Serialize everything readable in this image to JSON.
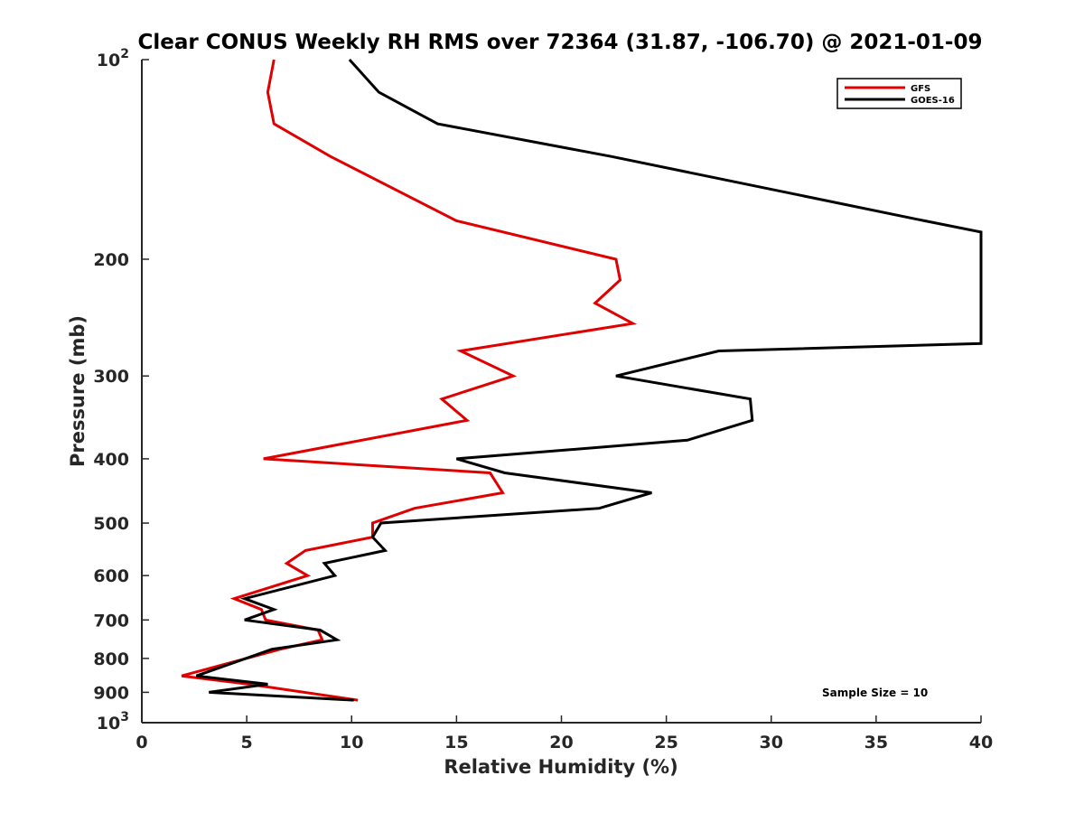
{
  "chart_data": {
    "type": "line",
    "title": "Clear CONUS Weekly RH RMS over 72364 (31.87, -106.70) @ 2021-01-09",
    "xlabel": "Relative Humidity (%)",
    "ylabel": "Pressure (mb)",
    "xlim": [
      0,
      40
    ],
    "ylim": [
      100,
      1000
    ],
    "y_scale": "log",
    "y_reversed": true,
    "x_ticks": [
      0,
      5,
      10,
      15,
      20,
      25,
      30,
      35,
      40
    ],
    "x_tick_labels": [
      "0",
      "5",
      "10",
      "15",
      "20",
      "25",
      "30",
      "35",
      "40"
    ],
    "y_ticks": [
      100,
      200,
      300,
      400,
      500,
      600,
      700,
      800,
      900,
      1000
    ],
    "y_tick_labels": [
      {
        "base": "10",
        "exp": "2"
      },
      {
        "base": "200",
        "exp": ""
      },
      {
        "base": "300",
        "exp": ""
      },
      {
        "base": "400",
        "exp": ""
      },
      {
        "base": "500",
        "exp": ""
      },
      {
        "base": "600",
        "exp": ""
      },
      {
        "base": "700",
        "exp": ""
      },
      {
        "base": "800",
        "exp": ""
      },
      {
        "base": "900",
        "exp": ""
      },
      {
        "base": "10",
        "exp": "3"
      }
    ],
    "grid": false,
    "legend_position": "top-right",
    "annotation": "Sample Size = 10",
    "series": [
      {
        "name": "GFS",
        "color": "#e00000",
        "points": [
          {
            "x": 6.3,
            "p": 100
          },
          {
            "x": 6.0,
            "p": 112
          },
          {
            "x": 6.3,
            "p": 125
          },
          {
            "x": 9.0,
            "p": 140
          },
          {
            "x": 15.0,
            "p": 175
          },
          {
            "x": 22.6,
            "p": 200
          },
          {
            "x": 22.8,
            "p": 215
          },
          {
            "x": 21.6,
            "p": 233
          },
          {
            "x": 23.4,
            "p": 250
          },
          {
            "x": 15.2,
            "p": 275
          },
          {
            "x": 17.7,
            "p": 300
          },
          {
            "x": 14.3,
            "p": 325
          },
          {
            "x": 15.5,
            "p": 350
          },
          {
            "x": 5.8,
            "p": 400
          },
          {
            "x": 16.6,
            "p": 420
          },
          {
            "x": 17.2,
            "p": 450
          },
          {
            "x": 13.0,
            "p": 475
          },
          {
            "x": 11.0,
            "p": 500
          },
          {
            "x": 11.0,
            "p": 525
          },
          {
            "x": 7.8,
            "p": 550
          },
          {
            "x": 6.9,
            "p": 575
          },
          {
            "x": 7.9,
            "p": 600
          },
          {
            "x": 4.4,
            "p": 650
          },
          {
            "x": 5.7,
            "p": 675
          },
          {
            "x": 5.9,
            "p": 700
          },
          {
            "x": 8.4,
            "p": 725
          },
          {
            "x": 8.6,
            "p": 750
          },
          {
            "x": 6.6,
            "p": 775
          },
          {
            "x": 1.9,
            "p": 850
          },
          {
            "x": 5.1,
            "p": 875
          },
          {
            "x": 10.3,
            "p": 925
          }
        ]
      },
      {
        "name": "GOES-16",
        "color": "#000000",
        "points": [
          {
            "x": 9.9,
            "p": 100
          },
          {
            "x": 11.3,
            "p": 112
          },
          {
            "x": 14.1,
            "p": 125
          },
          {
            "x": 22.4,
            "p": 140
          },
          {
            "x": 37.3,
            "p": 175
          },
          {
            "x": 40.0,
            "p": 182
          },
          {
            "x": 40.0,
            "p": 268
          },
          {
            "x": 27.5,
            "p": 275
          },
          {
            "x": 22.6,
            "p": 300
          },
          {
            "x": 29.0,
            "p": 325
          },
          {
            "x": 29.1,
            "p": 350
          },
          {
            "x": 26.0,
            "p": 375
          },
          {
            "x": 15.0,
            "p": 400
          },
          {
            "x": 17.3,
            "p": 420
          },
          {
            "x": 24.3,
            "p": 450
          },
          {
            "x": 21.8,
            "p": 475
          },
          {
            "x": 11.4,
            "p": 500
          },
          {
            "x": 11.0,
            "p": 525
          },
          {
            "x": 11.6,
            "p": 550
          },
          {
            "x": 8.7,
            "p": 575
          },
          {
            "x": 9.2,
            "p": 600
          },
          {
            "x": 4.9,
            "p": 650
          },
          {
            "x": 6.3,
            "p": 675
          },
          {
            "x": 4.9,
            "p": 700
          },
          {
            "x": 8.5,
            "p": 725
          },
          {
            "x": 9.3,
            "p": 750
          },
          {
            "x": 6.2,
            "p": 775
          },
          {
            "x": 2.6,
            "p": 850
          },
          {
            "x": 6.0,
            "p": 875
          },
          {
            "x": 3.2,
            "p": 900
          },
          {
            "x": 10.1,
            "p": 925
          }
        ]
      }
    ]
  }
}
